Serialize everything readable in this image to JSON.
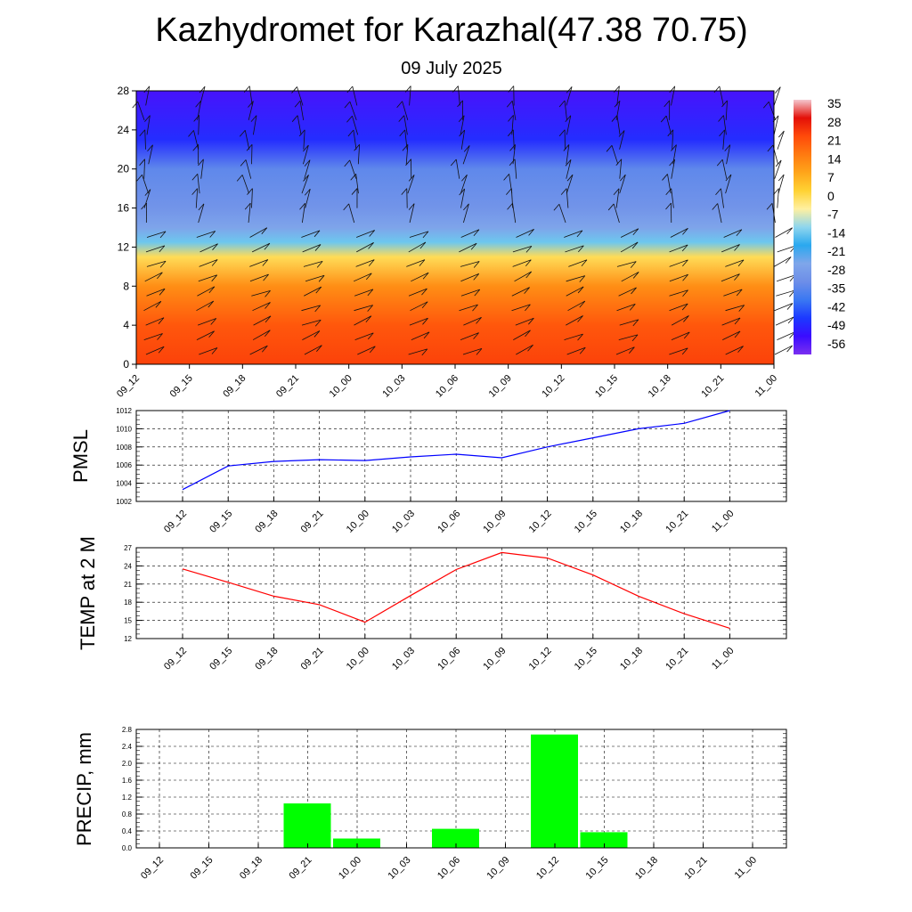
{
  "header": {
    "title": "Kazhydromet for Karazhal(47.38 70.75)",
    "date": "09 July 2025"
  },
  "time_labels": [
    "09_12",
    "09_15",
    "09_18",
    "09_21",
    "10_00",
    "10_03",
    "10_06",
    "10_09",
    "10_12",
    "10_15",
    "10_18",
    "10_21",
    "11_00"
  ],
  "chart_data": [
    {
      "type": "heatmap",
      "y_ticks": [
        "0",
        "4",
        "8",
        "12",
        "16",
        "20",
        "24",
        "28"
      ],
      "ylim": [
        0,
        28
      ],
      "colorbar_labels": [
        "35",
        "28",
        "21",
        "14",
        "7",
        "0",
        "-7",
        "-14",
        "-21",
        "-28",
        "-35",
        "-42",
        "-49",
        "-56"
      ],
      "colorbar_range": [
        -63,
        42
      ],
      "color_stops": [
        "#7b2ff0",
        "#3a0cff",
        "#1c39ff",
        "#3a78f2",
        "#6d8ee8",
        "#7fa6ea",
        "#2aa8ef",
        "#8fd6ee",
        "#fff0a0",
        "#ffd233",
        "#ffa51a",
        "#ff7a10",
        "#ff4a0a",
        "#e31008",
        "#f4c7cf"
      ],
      "temperature_profile": [
        {
          "level": 0,
          "value": 28
        },
        {
          "level": 4,
          "value": 25
        },
        {
          "level": 8,
          "value": 16
        },
        {
          "level": 11,
          "value": 2
        },
        {
          "level": 12.5,
          "value": -13
        },
        {
          "level": 14,
          "value": -26
        },
        {
          "level": 16,
          "value": -31
        },
        {
          "level": 20,
          "value": -35
        },
        {
          "level": 23,
          "value": -50
        },
        {
          "level": 28,
          "value": -57
        }
      ]
    },
    {
      "type": "line",
      "ylabel": "PMSL",
      "y_ticks": [
        "1002",
        "1004",
        "1006",
        "1008",
        "1010",
        "1012"
      ],
      "ylim": [
        1002,
        1012
      ],
      "color": "#0000ff",
      "series": [
        {
          "values": [
            1003.3,
            1005.9,
            1006.4,
            1006.6,
            1006.5,
            1006.9,
            1007.2,
            1006.8,
            1008.0,
            1009.0,
            1010.0,
            1010.6,
            1012.0
          ]
        }
      ]
    },
    {
      "type": "line",
      "ylabel": "TEMP at 2 M",
      "y_ticks": [
        "12",
        "15",
        "18",
        "21",
        "24",
        "27"
      ],
      "ylim": [
        12,
        27
      ],
      "color": "#ff0000",
      "series": [
        {
          "values": [
            23.5,
            21.3,
            19.0,
            17.6,
            14.7,
            19.1,
            23.4,
            26.2,
            25.3,
            22.5,
            19.0,
            16.1,
            13.7
          ]
        }
      ]
    },
    {
      "type": "bar",
      "ylabel": "PRECIP, mm",
      "y_ticks": [
        "0.0",
        "0.4",
        "0.8",
        "1.2",
        "1.6",
        "2.0",
        "2.4",
        "2.8"
      ],
      "ylim": [
        0,
        2.8
      ],
      "color": "#00ff00",
      "values": [
        0,
        0,
        0,
        1.05,
        0.22,
        0,
        0.45,
        0,
        2.68,
        0.37,
        0,
        0,
        0
      ]
    }
  ]
}
